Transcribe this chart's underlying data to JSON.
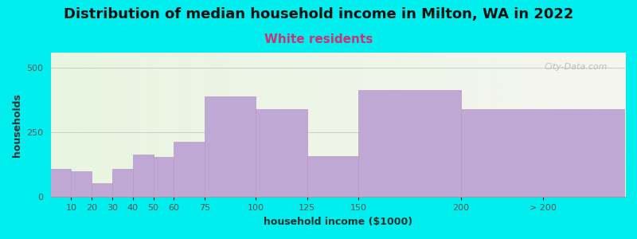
{
  "title": "Distribution of median household income in Milton, WA in 2022",
  "subtitle": "White residents",
  "xlabel": "household income ($1000)",
  "ylabel": "households",
  "bg_color": "#00EEEE",
  "bar_color": "#C0A8D5",
  "bar_edge_color": "#b898c8",
  "categories": [
    "10",
    "20",
    "30",
    "40",
    "50",
    "60",
    "75",
    "100",
    "125",
    "150",
    "200",
    "> 200"
  ],
  "left_edges": [
    0,
    10,
    20,
    30,
    40,
    50,
    60,
    75,
    100,
    125,
    150,
    200
  ],
  "widths": [
    10,
    10,
    10,
    10,
    10,
    10,
    15,
    25,
    25,
    25,
    50,
    80
  ],
  "values": [
    110,
    100,
    55,
    110,
    165,
    155,
    215,
    390,
    340,
    160,
    415,
    340
  ],
  "xlim": [
    0,
    280
  ],
  "ylim": [
    0,
    560
  ],
  "yticks": [
    0,
    250,
    500
  ],
  "xtick_positions": [
    10,
    20,
    30,
    40,
    50,
    60,
    75,
    100,
    125,
    150,
    200,
    240
  ],
  "xtick_labels": [
    "10",
    "20",
    "30",
    "40",
    "50",
    "60",
    "75",
    "100",
    "125",
    "150",
    "200",
    "> 200"
  ],
  "title_fontsize": 13,
  "subtitle_fontsize": 11,
  "axis_label_fontsize": 9,
  "tick_fontsize": 8,
  "watermark": "City-Data.com",
  "gradient_left": "#e8f5e0",
  "gradient_right": "#f5f5f0"
}
